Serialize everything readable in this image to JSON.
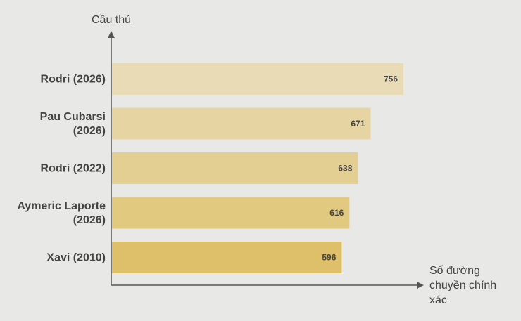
{
  "chart_data": {
    "type": "bar",
    "orientation": "horizontal",
    "ylabel": "Cầu thủ",
    "xlabel": [
      "Số đường",
      "chuyền chính",
      "xác"
    ],
    "categories": [
      [
        "Rodri (2026)"
      ],
      [
        "Pau Cubarsi",
        "(2026)"
      ],
      [
        "Rodri (2022)"
      ],
      [
        "Aymeric Laporte",
        "(2026)"
      ],
      [
        "Xavi (2010)"
      ]
    ],
    "values": [
      756,
      671,
      638,
      616,
      596
    ],
    "xlim": [
      0,
      790
    ],
    "grid": false,
    "legend": "none",
    "colors": [
      "#e8dbb5",
      "#e6d5a3",
      "#e4cf92",
      "#e1c97f",
      "#dfc06a"
    ],
    "axis_color": "#555555"
  }
}
